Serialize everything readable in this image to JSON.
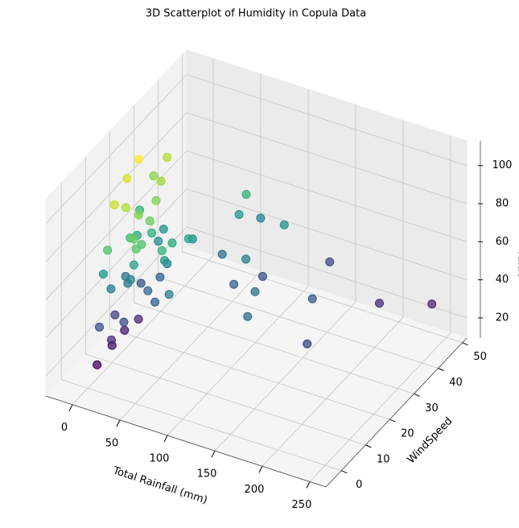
{
  "chart_data": {
    "type": "scatter3d",
    "title": "3D Scatterplot of Humidity in Copula Data",
    "xlabel": "Total Rainfall (mm)",
    "ylabel": "WindSpeed",
    "zlabel": "Value",
    "x": [
      2,
      5,
      8,
      12,
      15,
      3,
      7,
      10,
      20,
      25,
      4,
      9,
      14,
      18,
      22,
      30,
      6,
      11,
      16,
      28,
      35,
      40,
      1,
      13,
      19,
      24,
      33,
      45,
      8,
      17,
      26,
      38,
      50,
      55,
      3,
      10,
      21,
      32,
      44,
      60,
      5,
      12,
      23,
      36,
      48,
      65,
      70,
      80,
      90,
      100,
      110,
      120,
      140,
      160,
      180,
      200,
      240,
      130,
      95,
      75
    ],
    "y": [
      3,
      8,
      12,
      5,
      15,
      10,
      2,
      18,
      7,
      20,
      14,
      6,
      11,
      22,
      9,
      13,
      4,
      16,
      25,
      8,
      19,
      12,
      21,
      3,
      10,
      17,
      6,
      14,
      24,
      9,
      18,
      5,
      11,
      20,
      15,
      7,
      22,
      13,
      26,
      10,
      19,
      28,
      12,
      8,
      16,
      30,
      35,
      40,
      25,
      33,
      38,
      22,
      45,
      30,
      20,
      42,
      48,
      15,
      28,
      36
    ],
    "z": [
      18,
      22,
      25,
      30,
      28,
      35,
      40,
      42,
      38,
      45,
      50,
      55,
      52,
      60,
      58,
      48,
      65,
      70,
      62,
      68,
      55,
      45,
      75,
      80,
      78,
      72,
      85,
      65,
      90,
      95,
      88,
      82,
      75,
      70,
      100,
      98,
      92,
      85,
      60,
      55,
      105,
      95,
      88,
      80,
      72,
      50,
      65,
      58,
      45,
      40,
      62,
      50,
      38,
      42,
      35,
      30,
      28,
      48,
      55,
      75
    ],
    "colormap": "viridis",
    "xlim": [
      -28,
      267
    ],
    "ylim": [
      -6.4,
      51.8
    ],
    "zlim": [
      9.4,
      113
    ],
    "xticks": [
      0,
      50,
      100,
      150,
      200,
      250
    ],
    "yticks": [
      0,
      10,
      20,
      30,
      40,
      50
    ],
    "zticks": [
      20,
      40,
      60,
      80,
      100
    ],
    "grid": true
  }
}
